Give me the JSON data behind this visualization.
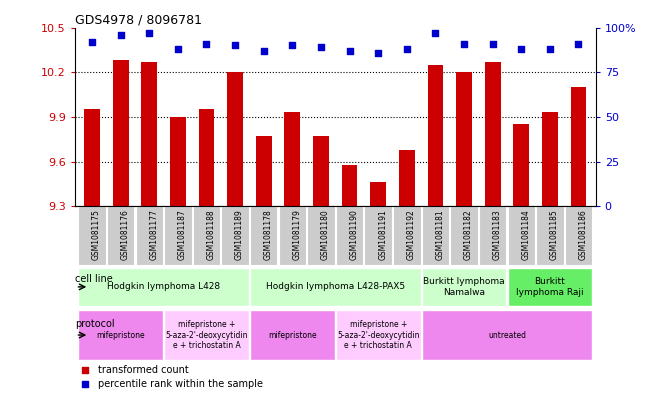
{
  "title": "GDS4978 / 8096781",
  "samples": [
    "GSM1081175",
    "GSM1081176",
    "GSM1081177",
    "GSM1081187",
    "GSM1081188",
    "GSM1081189",
    "GSM1081178",
    "GSM1081179",
    "GSM1081180",
    "GSM1081190",
    "GSM1081191",
    "GSM1081192",
    "GSM1081181",
    "GSM1081182",
    "GSM1081183",
    "GSM1081184",
    "GSM1081185",
    "GSM1081186"
  ],
  "transformed_count": [
    9.95,
    10.28,
    10.27,
    9.9,
    9.95,
    10.2,
    9.77,
    9.93,
    9.77,
    9.58,
    9.46,
    9.68,
    10.25,
    10.2,
    10.27,
    9.85,
    9.93,
    10.1
  ],
  "percentile_rank": [
    92,
    96,
    97,
    88,
    91,
    90,
    87,
    90,
    89,
    87,
    86,
    88,
    97,
    91,
    91,
    88,
    88,
    91
  ],
  "bar_color": "#cc0000",
  "dot_color": "#0000cc",
  "ylim_left": [
    9.3,
    10.5
  ],
  "ylim_right": [
    0,
    100
  ],
  "yticks_left": [
    9.3,
    9.6,
    9.9,
    10.2,
    10.5
  ],
  "yticks_right": [
    0,
    25,
    50,
    75,
    100
  ],
  "ytick_labels_right": [
    "0",
    "25",
    "50",
    "75",
    "100%"
  ],
  "cell_line_groups": [
    {
      "label": "Hodgkin lymphoma L428",
      "start": 0,
      "end": 5,
      "color": "#ccffcc"
    },
    {
      "label": "Hodgkin lymphoma L428-PAX5",
      "start": 6,
      "end": 11,
      "color": "#ccffcc"
    },
    {
      "label": "Burkitt lymphoma\nNamalwa",
      "start": 12,
      "end": 14,
      "color": "#ccffcc"
    },
    {
      "label": "Burkitt\nlymphoma Raji",
      "start": 15,
      "end": 17,
      "color": "#66ee66"
    }
  ],
  "protocol_groups": [
    {
      "label": "mifepristone",
      "start": 0,
      "end": 2,
      "color": "#ee88ee"
    },
    {
      "label": "mifepristone +\n5-aza-2'-deoxycytidin\ne + trichostatin A",
      "start": 3,
      "end": 5,
      "color": "#ffccff"
    },
    {
      "label": "mifepristone",
      "start": 6,
      "end": 8,
      "color": "#ee88ee"
    },
    {
      "label": "mifepristone +\n5-aza-2'-deoxycytidin\ne + trichostatin A",
      "start": 9,
      "end": 11,
      "color": "#ffccff"
    },
    {
      "label": "untreated",
      "start": 12,
      "end": 17,
      "color": "#ee88ee"
    }
  ],
  "xtick_bg": "#cccccc"
}
